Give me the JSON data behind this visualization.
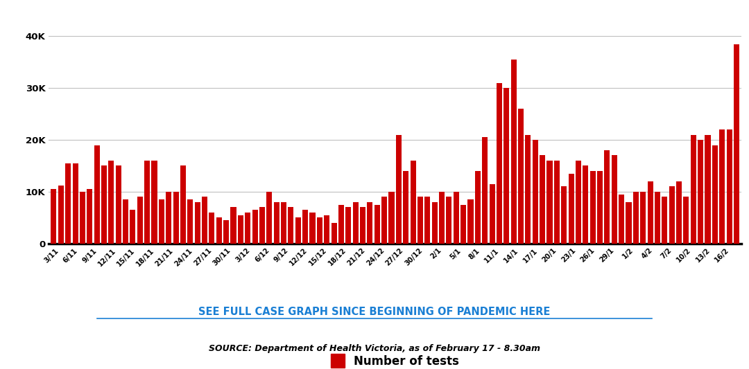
{
  "labels": [
    "3/11",
    "6/11",
    "9/11",
    "12/11",
    "15/11",
    "18/11",
    "21/11",
    "24/11",
    "27/11",
    "30/11",
    "3/12",
    "6/12",
    "9/12",
    "12/12",
    "15/12",
    "18/12",
    "21/12",
    "24/12",
    "27/12",
    "30/12",
    "2/1",
    "5/1",
    "8/1",
    "11/1",
    "14/1",
    "17/1",
    "20/1",
    "23/1",
    "26/1",
    "29/1",
    "1/2",
    "4/2",
    "7/2",
    "10/2",
    "13/2",
    "16/2"
  ],
  "bar_values": [
    10500,
    11200,
    15500,
    15500,
    10000,
    10500,
    19000,
    15000,
    16000,
    15000,
    8500,
    6500,
    9000,
    16000,
    16000,
    8500,
    10000,
    10000,
    15000,
    8500,
    8000,
    9000,
    6000,
    5000,
    4500,
    7000,
    5500,
    6000,
    6500,
    7000,
    10000,
    8000,
    8000,
    7000,
    5000,
    6500,
    6000,
    5000,
    5500,
    4000,
    7500,
    7000,
    8000,
    7000,
    8000,
    7500,
    9000,
    10000,
    21000,
    14000,
    16000,
    9000,
    9000,
    8000,
    10000,
    9000,
    10000,
    7500,
    8500,
    14000,
    20500,
    11500,
    31000,
    30000,
    35500,
    26000,
    21000,
    20000,
    17000,
    16000,
    16000,
    11000,
    13500,
    16000,
    15000,
    14000,
    14000,
    18000,
    17000,
    9500,
    8000,
    10000,
    10000,
    12000,
    10000,
    9000,
    11000,
    12000,
    9000,
    21000,
    20000,
    21000,
    19000,
    22000,
    22000,
    38500
  ],
  "bar_color": "#cc0000",
  "ylim": [
    0,
    42000
  ],
  "yticks": [
    0,
    10000,
    20000,
    30000,
    40000
  ],
  "ytick_labels": [
    "0",
    "10K",
    "20K",
    "30K",
    "40K"
  ],
  "legend_label": "Number of tests",
  "link_text": "SEE FULL CASE GRAPH SINCE BEGINNING OF PANDEMIC HERE",
  "source_text": "SOURCE: Department of Health Victoria, as of February 17 - 8.30am",
  "link_color": "#1a7fd4",
  "background_color": "#ffffff",
  "grid_color": "#c0c0c0",
  "axis_bottom_color": "#000000"
}
